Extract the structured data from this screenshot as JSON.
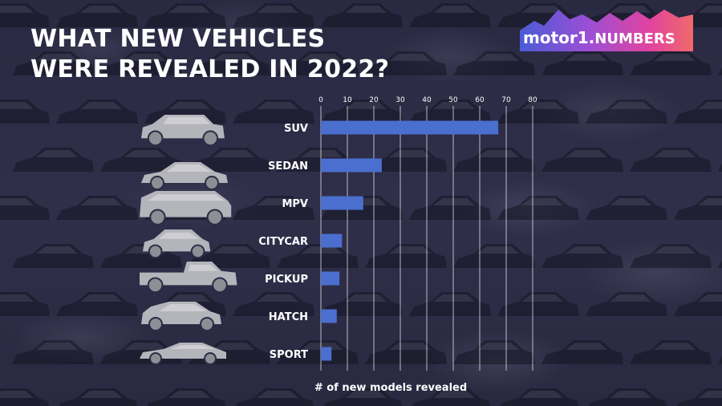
{
  "title_lines": [
    "WHAT NEW VEHICLES",
    "WERE REVEALED IN 2022?"
  ],
  "logo": {
    "brand": "motor",
    "number": "1.",
    "suffix": "NUMBERS"
  },
  "colors": {
    "bar": "#4a6fcf",
    "gridline": "#ffffff",
    "background": "#2c2b44",
    "logo_gradient": [
      "#4b5bd6",
      "#9c4fd4",
      "#e2439f",
      "#f06a6a"
    ]
  },
  "chart_data": {
    "type": "bar",
    "orientation": "horizontal",
    "categories": [
      "SUV",
      "SEDAN",
      "MPV",
      "CITYCAR",
      "PICKUP",
      "HATCH",
      "SPORT"
    ],
    "values": [
      67,
      23,
      16,
      8,
      7,
      6,
      4
    ],
    "xlabel": "# of new models revealed",
    "ticks": [
      0,
      10,
      20,
      30,
      40,
      50,
      60,
      70,
      80
    ],
    "xlim": [
      0,
      80
    ],
    "grid": true,
    "legend": "none"
  },
  "icons": [
    "suv-car-icon",
    "sedan-car-icon",
    "mpv-car-icon",
    "citycar-car-icon",
    "pickup-truck-icon",
    "hatch-car-icon",
    "sport-car-icon"
  ]
}
